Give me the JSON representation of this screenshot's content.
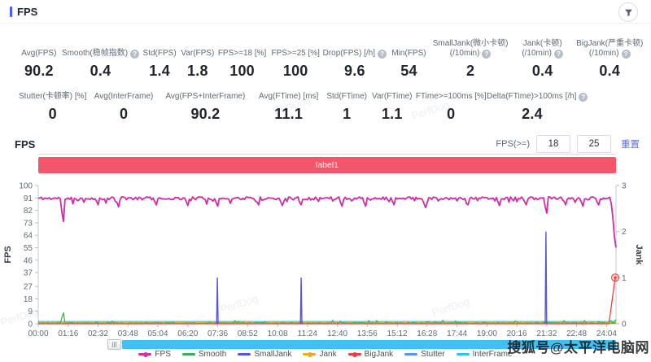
{
  "header": {
    "title": "FPS"
  },
  "stats_row1": [
    {
      "label": "Avg(FPS)",
      "value": "90.2"
    },
    {
      "label": "Smooth(稳帧指数)",
      "help": true,
      "value": "0.4"
    },
    {
      "label": "Std(FPS)",
      "value": "1.4"
    },
    {
      "label": "Var(FPS)",
      "value": "1.8"
    },
    {
      "label": "FPS>=18 [%]",
      "value": "100"
    },
    {
      "label": "FPS>=25 [%]",
      "value": "100"
    },
    {
      "label": "Drop(FPS) [/h]",
      "help": true,
      "value": "9.6"
    },
    {
      "label": "Min(FPS)",
      "value": "54"
    },
    {
      "label": "SmallJank(微小卡顿)",
      "label2": "(/10min)",
      "help": true,
      "value": "2"
    },
    {
      "label": "Jank(卡顿)",
      "label2": "(/10min)",
      "help": true,
      "value": "0.4"
    },
    {
      "label": "BigJank(严重卡顿)",
      "label2": "(/10min)",
      "help": true,
      "value": "0.4"
    }
  ],
  "stats_row2": [
    {
      "label": "Stutter(卡顿率) [%]",
      "value": "0"
    },
    {
      "label": "Avg(InterFrame)",
      "value": "0"
    },
    {
      "label": "Avg(FPS+InterFrame)",
      "value": "90.2"
    },
    {
      "label": "Avg(FTime) [ms]",
      "value": "11.1"
    },
    {
      "label": "Std(FTime)",
      "value": "1"
    },
    {
      "label": "Var(FTime)",
      "value": "1.1"
    },
    {
      "label": "FTime>=100ms [%]",
      "value": "0"
    },
    {
      "label": "Delta(FTime)>100ms [/h]",
      "help": true,
      "value": "2.4"
    }
  ],
  "section": {
    "title": "FPS",
    "threshold_label": "FPS(>=)",
    "threshold1": "18",
    "threshold2": "25",
    "reset_label": "重置"
  },
  "label_bar": {
    "text": "label1",
    "color": "#f2566a"
  },
  "chart_data": {
    "type": "line",
    "title": "",
    "x_ticks": [
      "00:00",
      "01:16",
      "02:32",
      "03:48",
      "05:04",
      "06:20",
      "07:36",
      "08:52",
      "10:08",
      "11:24",
      "12:40",
      "13:56",
      "15:12",
      "16:28",
      "17:44",
      "19:00",
      "20:16",
      "21:32",
      "22:48",
      "24:04"
    ],
    "x_tick_interval_s": 76,
    "duration_s": 1468,
    "grid": false,
    "y_left": {
      "label": "FPS",
      "min": 0,
      "max": 100,
      "ticks": [
        100,
        91,
        82,
        73,
        64,
        55,
        46,
        37,
        27,
        18,
        9,
        0
      ]
    },
    "y_right": {
      "label": "Jank",
      "min": 0,
      "max": 3,
      "ticks": [
        3,
        2,
        1,
        0
      ]
    },
    "series": [
      {
        "name": "BigJank",
        "axis": "right",
        "color": "#e8413c",
        "style": "end-marker",
        "baseline": 0.0,
        "end_t": 1466,
        "end_v": 1
      },
      {
        "name": "Stutter",
        "axis": "right",
        "color": "#5b8ff9",
        "style": "flat",
        "baseline": 0.01
      },
      {
        "name": "InterFrame",
        "axis": "right",
        "color": "#2bc8df",
        "style": "flat",
        "baseline": 0.05
      },
      {
        "name": "Jank",
        "axis": "right",
        "color": "#f6a52c",
        "style": "flat",
        "baseline": 0.03
      },
      {
        "name": "Smooth",
        "axis": "left",
        "color": "#3db154",
        "style": "noisy-line",
        "seed": 23,
        "baseline": 0.5,
        "jitter": 0.4,
        "spike_prob": 0.07,
        "spike_amp": 2.2,
        "anchors": [
          [
            62,
            8
          ],
          [
            1468,
            3
          ]
        ]
      },
      {
        "name": "SmallJank",
        "axis": "right",
        "color": "#5656d8",
        "style": "spikes",
        "spikes": [
          [
            455,
            1
          ],
          [
            668,
            1
          ],
          [
            1290,
            2
          ]
        ]
      },
      {
        "name": "FPS",
        "axis": "left",
        "color": "#cb2ea6",
        "style": "noisy-line",
        "seed": 11,
        "baseline": 90.7,
        "jitter": 1.1,
        "spike_prob": 0.1,
        "spike_amp": -3.5,
        "anchors": [
          [
            62,
            74
          ],
          [
            150,
            86
          ],
          [
            205,
            84.5
          ],
          [
            300,
            86
          ],
          [
            380,
            85.5
          ],
          [
            455,
            85
          ],
          [
            560,
            86
          ],
          [
            620,
            85.5
          ],
          [
            668,
            86
          ],
          [
            770,
            85
          ],
          [
            830,
            85
          ],
          [
            905,
            86
          ],
          [
            985,
            84
          ],
          [
            1090,
            86
          ],
          [
            1170,
            85.5
          ],
          [
            1240,
            86
          ],
          [
            1290,
            80
          ],
          [
            1340,
            86
          ],
          [
            1385,
            85
          ],
          [
            1425,
            86
          ],
          [
            1460,
            84
          ],
          [
            1464,
            70
          ],
          [
            1468,
            55
          ]
        ]
      }
    ]
  },
  "legend": [
    {
      "name": "FPS",
      "color": "#d630a8",
      "dot": true
    },
    {
      "name": "Smooth",
      "color": "#3db154",
      "dot": false
    },
    {
      "name": "SmallJank",
      "color": "#5656d8",
      "dot": false
    },
    {
      "name": "Jank",
      "color": "#f6a52c",
      "dot": true
    },
    {
      "name": "BigJank",
      "color": "#e8413c",
      "dot": true
    },
    {
      "name": "Stutter",
      "color": "#5b8ff9",
      "dot": false
    },
    {
      "name": "InterFrame",
      "color": "#2bc8df",
      "dot": false
    }
  ],
  "watermarks": {
    "perfdog": "PerfDog",
    "bottom_right": "搜狐号@太平洋电脑网"
  }
}
